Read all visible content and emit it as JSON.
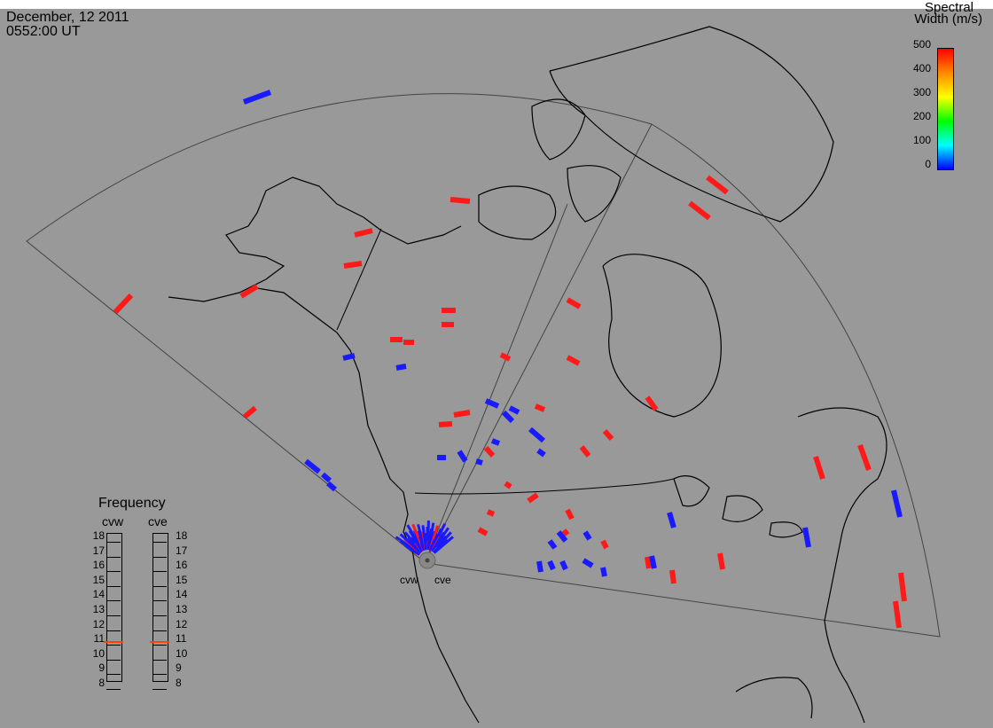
{
  "header": {
    "date": "December, 12 2011",
    "time": "0552:00 UT"
  },
  "legend": {
    "title_line1": "Spectral",
    "title_line2": "Width (m/s)",
    "ticks": [
      "500",
      "400",
      "300",
      "200",
      "100",
      "0"
    ]
  },
  "frequency": {
    "title": "Frequency",
    "radars": [
      "cvw",
      "cve"
    ],
    "ticks": [
      "18",
      "17",
      "16",
      "15",
      "14",
      "13",
      "12",
      "11",
      "10",
      "9",
      "8"
    ],
    "markers": [
      10.8,
      10.8
    ]
  },
  "sites": {
    "west": "cvw",
    "east": "cve"
  },
  "colors": {
    "background": "#999999",
    "low": "#1a1aff",
    "high": "#ff1a1a"
  }
}
